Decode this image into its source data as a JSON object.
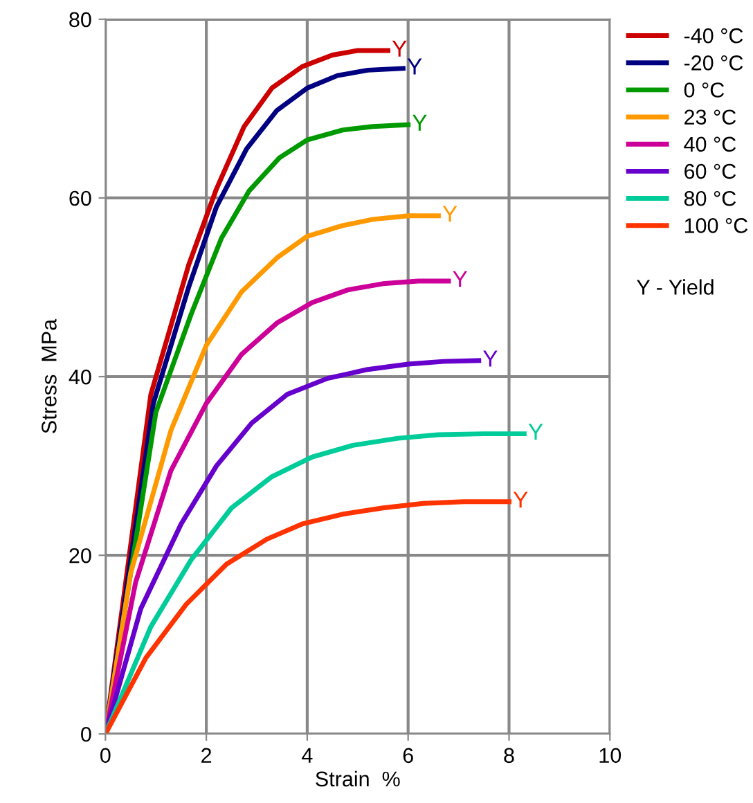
{
  "chart_data": {
    "type": "line",
    "xlabel": "Strain  %",
    "ylabel": "Stress  MPa",
    "xlim": [
      0,
      10
    ],
    "xticks": [
      0,
      2,
      4,
      6,
      8,
      10
    ],
    "ylim": [
      0,
      80
    ],
    "yticks": [
      0,
      20,
      40,
      60,
      80
    ],
    "grid": true,
    "legend": "right",
    "marker": "none",
    "line_style": "solid",
    "series": [
      {
        "name": "-40 °C",
        "color": "#cc0000",
        "x": [
          0,
          0.9,
          1.65,
          2.2,
          2.75,
          3.3,
          3.9,
          4.5,
          5.0,
          5.6
        ],
        "values": [
          0,
          38,
          52.5,
          61,
          68,
          72.3,
          74.7,
          76,
          76.5,
          76.5
        ]
      },
      {
        "name": "-20 °C",
        "color": "#000080",
        "x": [
          0,
          0.95,
          1.65,
          2.2,
          2.8,
          3.4,
          4.0,
          4.6,
          5.2,
          5.9
        ],
        "values": [
          0,
          37,
          50,
          59,
          65.5,
          69.8,
          72.3,
          73.7,
          74.3,
          74.5
        ]
      },
      {
        "name": "0 °C",
        "color": "#009900",
        "x": [
          0,
          1.0,
          1.7,
          2.3,
          2.85,
          3.45,
          4.0,
          4.7,
          5.3,
          6.0
        ],
        "values": [
          0,
          36,
          47,
          55.5,
          60.8,
          64.5,
          66.5,
          67.6,
          68,
          68.2
        ]
      },
      {
        "name": "23 °C",
        "color": "#ff9900",
        "x": [
          0,
          0.5,
          1.3,
          2.0,
          2.7,
          3.4,
          4.0,
          4.7,
          5.3,
          6.0,
          6.6
        ],
        "values": [
          0,
          18,
          34,
          43.5,
          49.5,
          53.3,
          55.7,
          56.9,
          57.6,
          58,
          58
        ]
      },
      {
        "name": "40 °C",
        "color": "#cc0099",
        "x": [
          0,
          0.6,
          1.3,
          2.0,
          2.7,
          3.4,
          4.1,
          4.8,
          5.5,
          6.2,
          6.8
        ],
        "values": [
          0,
          17,
          29.5,
          37,
          42.5,
          46,
          48.3,
          49.7,
          50.4,
          50.7,
          50.7
        ]
      },
      {
        "name": "60 °C",
        "color": "#6600cc",
        "x": [
          0,
          0.7,
          1.5,
          2.2,
          2.9,
          3.6,
          4.4,
          5.2,
          6.0,
          6.7,
          7.4
        ],
        "values": [
          0,
          14,
          23.5,
          30,
          34.8,
          38,
          39.8,
          40.8,
          41.4,
          41.7,
          41.8
        ]
      },
      {
        "name": "80 °C",
        "color": "#00cc99",
        "x": [
          0,
          0.9,
          1.7,
          2.5,
          3.3,
          4.1,
          4.9,
          5.8,
          6.6,
          7.5,
          8.3
        ],
        "values": [
          0,
          12,
          19.5,
          25.3,
          28.8,
          31,
          32.3,
          33.1,
          33.5,
          33.6,
          33.6
        ]
      },
      {
        "name": "100 °C",
        "color": "#ff3300",
        "x": [
          0,
          0.8,
          1.6,
          2.4,
          3.2,
          3.9,
          4.7,
          5.5,
          6.3,
          7.1,
          8.0
        ],
        "values": [
          0,
          8.5,
          14.5,
          19,
          21.8,
          23.5,
          24.6,
          25.3,
          25.8,
          26,
          26
        ]
      }
    ],
    "annotations": [
      {
        "text": "Y",
        "x": 5.6,
        "y": 76.5
      },
      {
        "text": "Y",
        "x": 5.9,
        "y": 74.5
      },
      {
        "text": "Y",
        "x": 6.0,
        "y": 68.2
      },
      {
        "text": "Y",
        "x": 6.6,
        "y": 58
      },
      {
        "text": "Y",
        "x": 6.8,
        "y": 50.7
      },
      {
        "text": "Y",
        "x": 7.4,
        "y": 41.8
      },
      {
        "text": "Y",
        "x": 8.3,
        "y": 33.6
      },
      {
        "text": "Y",
        "x": 8.0,
        "y": 26
      },
      "Y - Yield"
    ]
  }
}
